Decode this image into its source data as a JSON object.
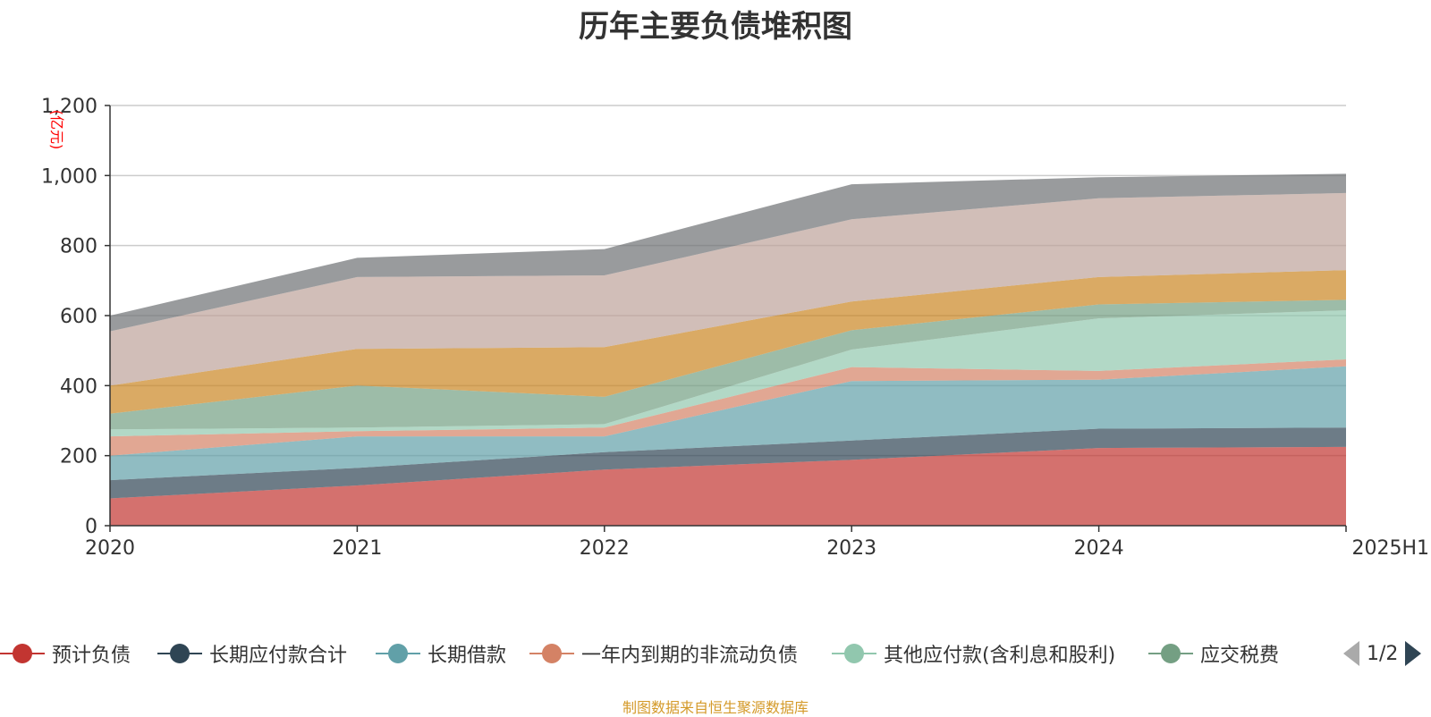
{
  "chart_data": {
    "type": "area",
    "stacked": true,
    "title": "历年主要负债堆积图",
    "unit_label": "(亿元)",
    "categories": [
      "2020",
      "2021",
      "2022",
      "2023",
      "2024",
      "2025H1"
    ],
    "ylim": [
      0,
      1200
    ],
    "yticks": [
      0,
      200,
      400,
      600,
      800,
      1000,
      1200
    ],
    "ytick_labels": [
      "0",
      "200",
      "400",
      "600",
      "800",
      "1,000",
      "1,200"
    ],
    "grid": true,
    "legend_position": "bottom",
    "series": [
      {
        "name": "预计负债",
        "color": "#c23531",
        "values": [
          78,
          115,
          160,
          188,
          222,
          225
        ]
      },
      {
        "name": "长期应付款合计",
        "color": "#2f4554",
        "values": [
          52,
          50,
          50,
          55,
          55,
          55
        ]
      },
      {
        "name": "长期借款",
        "color": "#61a0a8",
        "values": [
          70,
          90,
          45,
          170,
          140,
          175
        ]
      },
      {
        "name": "一年内到期的非流动负债",
        "color": "#d48265",
        "values": [
          55,
          15,
          25,
          40,
          25,
          20
        ]
      },
      {
        "name": "其他应付款(含利息和股利)",
        "color": "#91c7ae",
        "values": [
          20,
          10,
          10,
          50,
          150,
          140
        ]
      },
      {
        "name": "应交税费",
        "color": "#749f83",
        "values": [
          45,
          120,
          78,
          55,
          40,
          30
        ]
      },
      {
        "name": "",
        "color": "#ca8622",
        "values": [
          80,
          105,
          142,
          82,
          78,
          85
        ]
      },
      {
        "name": "",
        "color": "#bda29a",
        "values": [
          155,
          205,
          205,
          235,
          225,
          220
        ]
      },
      {
        "name": "",
        "color": "#6e7074",
        "values": [
          45,
          55,
          75,
          100,
          60,
          55
        ]
      }
    ]
  },
  "legend": {
    "page_text": "1/2",
    "visible_series": [
      0,
      1,
      2,
      3,
      4,
      5
    ]
  },
  "footer": {
    "source": "制图数据来自恒生聚源数据库"
  },
  "colors": {
    "axis": "#333333",
    "grid": "#cccccc",
    "unit_label": "#ff0000",
    "source": "#d49a2a"
  }
}
